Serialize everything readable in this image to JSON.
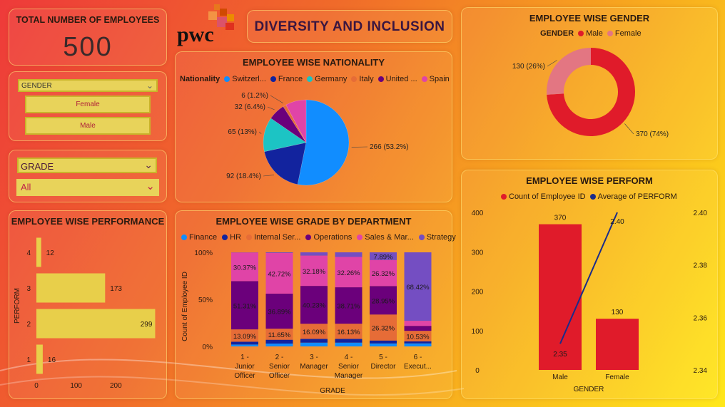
{
  "kpi": {
    "title": "TOTAL NUMBER OF EMPLOYEES",
    "value": "500"
  },
  "logo": {
    "text": "pwc"
  },
  "page_title": "DIVERSITY AND INCLUSION",
  "gender_slicer": {
    "header": "GENDER",
    "options": [
      "Female",
      "Male"
    ]
  },
  "grade_slicer": {
    "header": "GRADE",
    "selected": "All"
  },
  "colors": {
    "switzerland": "#118dff",
    "france": "#12239e",
    "germany": "#1cc4c4",
    "italy": "#e66c37",
    "united": "#6b007b",
    "spain": "#e044a7",
    "male": "#e01b2a",
    "female": "#e37682",
    "finance": "#118dff",
    "hr": "#12239e",
    "internal": "#e66c37",
    "operations": "#6b007b",
    "sales": "#e044a7",
    "strategy": "#744ec2",
    "bar_yellow": "#e8cf4a",
    "line": "#1a2b8a"
  },
  "chart_data": [
    {
      "id": "nationality",
      "type": "pie",
      "title": "EMPLOYEE WISE NATIONALITY",
      "legend_title": "Nationality",
      "legend": [
        "Switzerl...",
        "France",
        "Germany",
        "Italy",
        "United ...",
        "Spain"
      ],
      "slices": [
        {
          "name": "Switzerland",
          "value": 266,
          "label": "266 (53.2%)"
        },
        {
          "name": "France",
          "value": 92,
          "label": "92 (18.4%)"
        },
        {
          "name": "Germany",
          "value": 65,
          "label": "65 (13%)"
        },
        {
          "name": "United",
          "value": 32,
          "label": "32 (6.4%)"
        },
        {
          "name": "Italy",
          "value": 6,
          "label": "6 (1.2%)"
        },
        {
          "name": "Spain",
          "value": 39,
          "label": ""
        }
      ]
    },
    {
      "id": "gender",
      "type": "pie",
      "title": "EMPLOYEE WISE GENDER",
      "legend_title": "GENDER",
      "legend": [
        "Male",
        "Female"
      ],
      "slices": [
        {
          "name": "Male",
          "value": 370,
          "label": "370 (74%)"
        },
        {
          "name": "Female",
          "value": 130,
          "label": "130 (26%)"
        }
      ]
    },
    {
      "id": "performance",
      "type": "bar",
      "title": "EMPLOYEE WISE PERFORMANCE",
      "ylabel": "PERFORM",
      "categories": [
        "4",
        "3",
        "2",
        "1"
      ],
      "values": [
        12,
        173,
        299,
        16
      ],
      "x_ticks": [
        "0",
        "100",
        "200"
      ],
      "xlim": [
        0,
        300
      ]
    },
    {
      "id": "grade_dept",
      "type": "bar",
      "title": "EMPLOYEE WISE GRADE BY DEPARTMENT",
      "xlabel": "GRADE",
      "ylabel": "Count of Employee ID",
      "legend": [
        "Finance",
        "HR",
        "Internal Ser...",
        "Operations",
        "Sales & Mar...",
        "Strategy"
      ],
      "y_ticks": [
        "100%",
        "50%",
        "0%"
      ],
      "categories": [
        [
          "1 -",
          "Junior",
          "Officer"
        ],
        [
          "2 -",
          "Senior",
          "Officer"
        ],
        [
          "3 -",
          "Manager"
        ],
        [
          "4 -",
          "Senior",
          "Manager"
        ],
        [
          "5 -",
          "Director"
        ],
        [
          "6 -",
          "Execut..."
        ]
      ],
      "series": [
        {
          "name": "Finance",
          "values": [
            2,
            3,
            4,
            4,
            3,
            3
          ]
        },
        {
          "name": "HR",
          "values": [
            3,
            4,
            4,
            4,
            3,
            2
          ]
        },
        {
          "name": "Internal Services",
          "values": [
            13.09,
            11.65,
            16.09,
            16.13,
            26.32,
            10.53
          ]
        },
        {
          "name": "Operations",
          "values": [
            51.31,
            36.89,
            40.23,
            38.71,
            28.95,
            5
          ]
        },
        {
          "name": "Sales & Marketing",
          "values": [
            30.37,
            42.72,
            32.18,
            32.26,
            26.32,
            5
          ]
        },
        {
          "name": "Strategy",
          "values": [
            0.23,
            0.74,
            3.5,
            4.9,
            7.89,
            68.42
          ]
        }
      ],
      "data_labels": [
        [
          "13.09%",
          "51.31%",
          "30.37%"
        ],
        [
          "11.65%",
          "36.89%",
          "42.72%"
        ],
        [
          "16.09%",
          "40.23%",
          "32.18%"
        ],
        [
          "16.13%",
          "38.71%",
          "32.26%"
        ],
        [
          "26.32%",
          "28.95%",
          "26.32%",
          "7.89%"
        ],
        [
          "10.53%",
          "68.42%"
        ]
      ]
    },
    {
      "id": "perform_combo",
      "type": "bar",
      "title": "EMPLOYEE WISE PERFORM",
      "xlabel": "GENDER",
      "legend": [
        "Count of Employee ID",
        "Average of PERFORM"
      ],
      "categories": [
        "Male",
        "Female"
      ],
      "bars": [
        370,
        130
      ],
      "bar_labels": [
        "370",
        "130"
      ],
      "line": [
        2.35,
        2.4
      ],
      "line_labels": [
        "2.35",
        "2.40"
      ],
      "ylim_left": [
        0,
        400
      ],
      "ylim_right": [
        2.34,
        2.4
      ],
      "y_left_ticks": [
        "400",
        "300",
        "200",
        "100",
        "0"
      ],
      "y_right_ticks": [
        "2.40",
        "2.38",
        "2.36",
        "2.34"
      ]
    }
  ]
}
